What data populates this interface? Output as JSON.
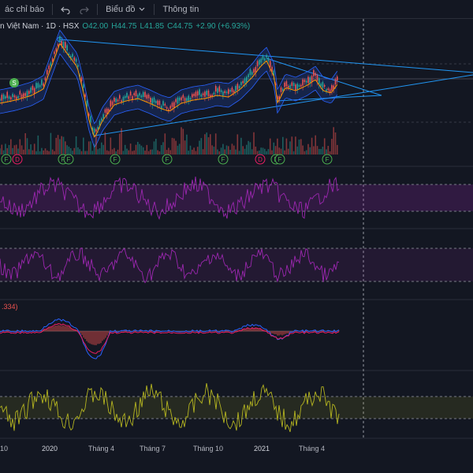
{
  "toolbar": {
    "indicators_label": "ác chỉ báo",
    "undo_icon": "undo-icon",
    "redo_icon": "redo-icon",
    "chart_type_label": "Biểu đồ",
    "info_label": "Thông tin"
  },
  "legend": {
    "symbol": "n Việt Nam · 1D · HSX",
    "open": "O42.00",
    "high": "H44.75",
    "low": "L41.85",
    "close": "C44.75",
    "change": "+2.90 (+6.93%)"
  },
  "macd_legend": ".334)",
  "events": {
    "split_badge": "S",
    "markers": [
      "F",
      "D",
      "F",
      "F",
      "F",
      "F",
      "F",
      "D",
      "F",
      "F",
      "F"
    ]
  },
  "x_axis": {
    "labels": [
      "10",
      "2020",
      "Tháng 4",
      "Tháng 7",
      "Tháng 10",
      "2021",
      "Tháng 4"
    ]
  },
  "colors": {
    "background": "#131722",
    "up": "#26a69a",
    "down": "#ef5350",
    "rsi": "#9c27b0",
    "stoch": "#9c27b0",
    "macd_line": "#2962ff",
    "signal_line": "#e91e63",
    "cci": "#b5b520",
    "trendline": "#2196f3"
  }
}
